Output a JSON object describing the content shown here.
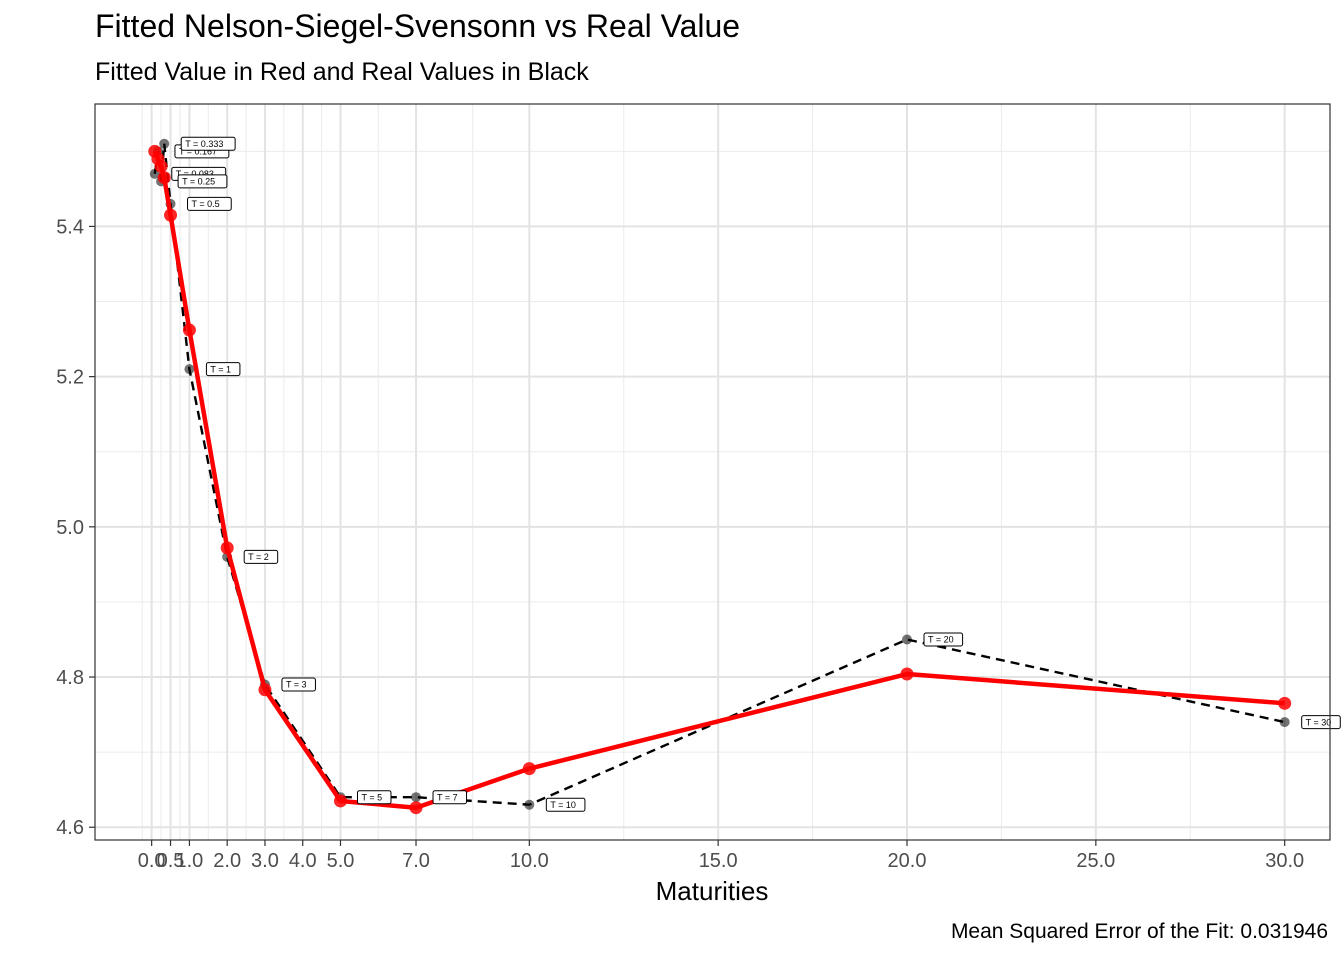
{
  "chart_data": {
    "type": "line",
    "title": "Fitted Nelson-Siegel-Svensonn vs Real Value",
    "subtitle": "Fitted Value in Red and Real Values in Black",
    "xlabel": "Maturities",
    "ylabel": "",
    "caption": "Mean Squared Error of the Fit: 0.031946",
    "xlim": [
      -1.5,
      31.2
    ],
    "ylim": [
      4.583,
      5.563
    ],
    "x_ticks": [
      0,
      0.5,
      1,
      2,
      3,
      4,
      5,
      7,
      10,
      15,
      20,
      25,
      30
    ],
    "x_tick_labels": [
      "0.0",
      "0.5",
      "1.0",
      "2.0",
      "3.0",
      "4.0",
      "5.0",
      "7.0",
      "10.0",
      "15.0",
      "20.0",
      "25.0",
      "30.0"
    ],
    "y_ticks": [
      4.6,
      4.8,
      5.0,
      5.2,
      5.4
    ],
    "y_tick_labels": [
      "4.6",
      "4.8",
      "5.0",
      "5.2",
      "5.4"
    ],
    "x": [
      0.083,
      0.167,
      0.25,
      0.333,
      0.5,
      1,
      2,
      3,
      5,
      7,
      10,
      20,
      30
    ],
    "point_labels": [
      "T = 0.083",
      "T = 0.167",
      "T = 0.25",
      "T = 0.333",
      "T = 0.5",
      "T = 1",
      "T = 2",
      "T = 3",
      "T = 5",
      "T = 7",
      "T = 10",
      "T = 20",
      "T = 30"
    ],
    "series": [
      {
        "name": "Real",
        "color": "#000000",
        "style": "dashed",
        "values": [
          5.47,
          5.5,
          5.46,
          5.51,
          5.43,
          5.21,
          4.96,
          4.79,
          4.64,
          4.64,
          4.63,
          4.85,
          4.74
        ]
      },
      {
        "name": "Fitted",
        "color": "#ff0000",
        "style": "solid",
        "values": [
          5.5,
          5.49,
          5.48,
          5.465,
          5.415,
          5.262,
          4.972,
          4.783,
          4.635,
          4.626,
          4.678,
          4.804,
          4.765
        ]
      }
    ],
    "grid": true
  }
}
